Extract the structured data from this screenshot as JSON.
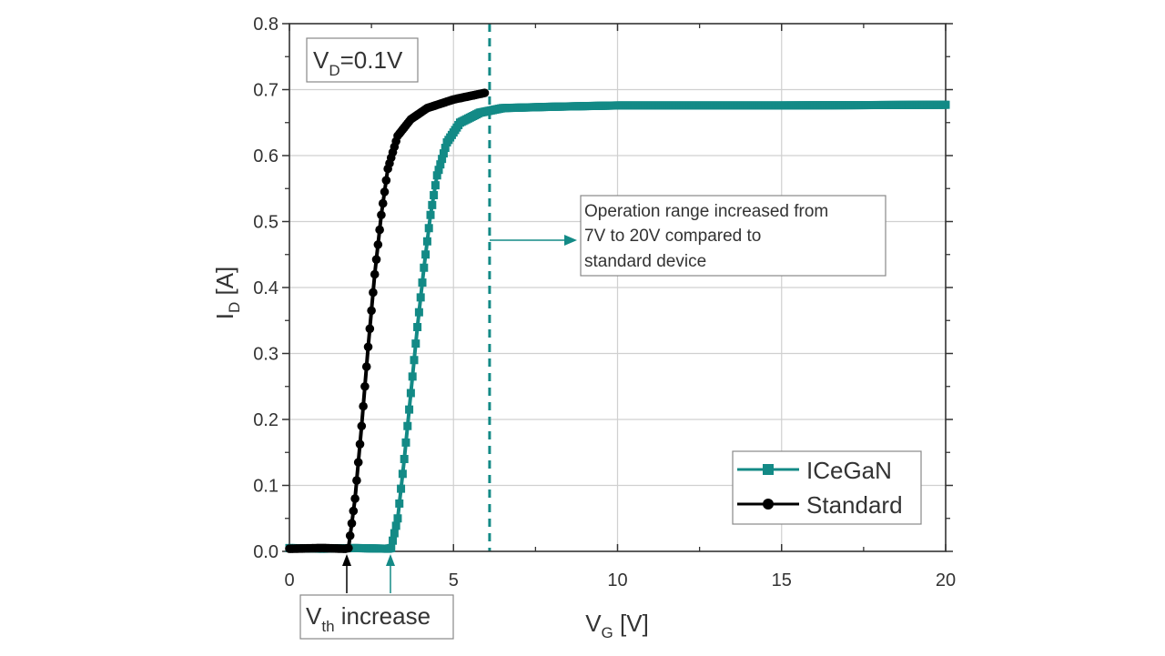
{
  "chart_data": {
    "type": "line",
    "title": "",
    "xlabel": "V",
    "xlabel_sub": "G",
    "xlabel_unit": " [V]",
    "ylabel": "I",
    "ylabel_sub": "D",
    "ylabel_unit": " [A]",
    "xlim": [
      0,
      20
    ],
    "ylim": [
      0,
      0.8
    ],
    "xticks": [
      0,
      5,
      10,
      15,
      20
    ],
    "xtick_labels": [
      "0",
      "5",
      "10",
      "15",
      "20"
    ],
    "yticks": [
      0,
      0.1,
      0.2,
      0.3,
      0.4,
      0.5,
      0.6,
      0.7,
      0.8
    ],
    "ytick_labels": [
      "0.0",
      "0.1",
      "0.2",
      "0.3",
      "0.4",
      "0.5",
      "0.6",
      "0.7",
      "0.8"
    ],
    "grid": true,
    "legend_position": "bottom-right",
    "series": [
      {
        "name": "ICeGaN",
        "color": "#138a86",
        "marker": "square",
        "vth": 3.1,
        "x_end": 20,
        "i_sat": 0.676,
        "points": [
          [
            0,
            0.005
          ],
          [
            1,
            0.004
          ],
          [
            2,
            0.005
          ],
          [
            3,
            0.004
          ],
          [
            3.1,
            0.005
          ],
          [
            3.3,
            0.05
          ],
          [
            3.5,
            0.14
          ],
          [
            3.7,
            0.24
          ],
          [
            3.9,
            0.34
          ],
          [
            4.1,
            0.43
          ],
          [
            4.3,
            0.51
          ],
          [
            4.5,
            0.57
          ],
          [
            4.8,
            0.62
          ],
          [
            5.2,
            0.65
          ],
          [
            5.8,
            0.665
          ],
          [
            6.5,
            0.672
          ],
          [
            8,
            0.674
          ],
          [
            10,
            0.676
          ],
          [
            15,
            0.676
          ],
          [
            20,
            0.677
          ]
        ]
      },
      {
        "name": "Standard",
        "color": "#000000",
        "marker": "circle",
        "vth": 1.8,
        "x_end": 5.95,
        "i_sat": 0.695,
        "points": [
          [
            0,
            0.004
          ],
          [
            1,
            0.005
          ],
          [
            1.7,
            0.004
          ],
          [
            1.8,
            0.005
          ],
          [
            2.0,
            0.08
          ],
          [
            2.2,
            0.19
          ],
          [
            2.4,
            0.31
          ],
          [
            2.6,
            0.42
          ],
          [
            2.8,
            0.51
          ],
          [
            3.0,
            0.58
          ],
          [
            3.3,
            0.63
          ],
          [
            3.7,
            0.655
          ],
          [
            4.2,
            0.672
          ],
          [
            5.0,
            0.685
          ],
          [
            5.95,
            0.695
          ]
        ]
      }
    ],
    "annotations": {
      "vd_label": "V",
      "vd_sub": "D",
      "vd_value": "=0.1V",
      "vth_label": "V",
      "vth_sub": "th",
      "vth_text": " increase",
      "operation_line_x": 6.1,
      "operation_lines": [
        "Operation range increased from",
        "7V to 20V compared to",
        "standard device"
      ],
      "accent_color": "#138a86"
    }
  }
}
